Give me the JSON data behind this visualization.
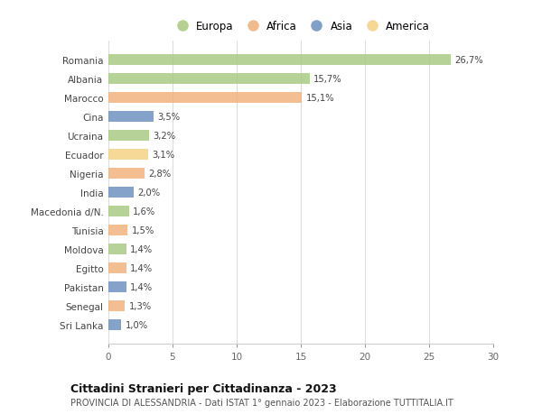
{
  "countries": [
    "Romania",
    "Albania",
    "Marocco",
    "Cina",
    "Ucraina",
    "Ecuador",
    "Nigeria",
    "India",
    "Macedonia d/N.",
    "Tunisia",
    "Moldova",
    "Egitto",
    "Pakistan",
    "Senegal",
    "Sri Lanka"
  ],
  "values": [
    26.7,
    15.7,
    15.1,
    3.5,
    3.2,
    3.1,
    2.8,
    2.0,
    1.6,
    1.5,
    1.4,
    1.4,
    1.4,
    1.3,
    1.0
  ],
  "labels": [
    "26,7%",
    "15,7%",
    "15,1%",
    "3,5%",
    "3,2%",
    "3,1%",
    "2,8%",
    "2,0%",
    "1,6%",
    "1,5%",
    "1,4%",
    "1,4%",
    "1,4%",
    "1,3%",
    "1,0%"
  ],
  "colors": [
    "#a8c97f",
    "#a8c97f",
    "#f0b07a",
    "#6a8fbf",
    "#a8c97f",
    "#f5d080",
    "#f0b07a",
    "#6a8fbf",
    "#a8c97f",
    "#f0b07a",
    "#a8c97f",
    "#f0b07a",
    "#6a8fbf",
    "#f0b07a",
    "#6a8fbf"
  ],
  "legend_labels": [
    "Europa",
    "Africa",
    "Asia",
    "America"
  ],
  "legend_colors": [
    "#a8c97f",
    "#f0b07a",
    "#6a8fbf",
    "#f5d080"
  ],
  "xlim": [
    0,
    30
  ],
  "xticks": [
    0,
    5,
    10,
    15,
    20,
    25,
    30
  ],
  "title": "Cittadini Stranieri per Cittadinanza - 2023",
  "subtitle": "PROVINCIA DI ALESSANDRIA - Dati ISTAT 1° gennaio 2023 - Elaborazione TUTTITALIA.IT",
  "background_color": "#ffffff",
  "grid_color": "#dddddd",
  "bar_height": 0.55
}
